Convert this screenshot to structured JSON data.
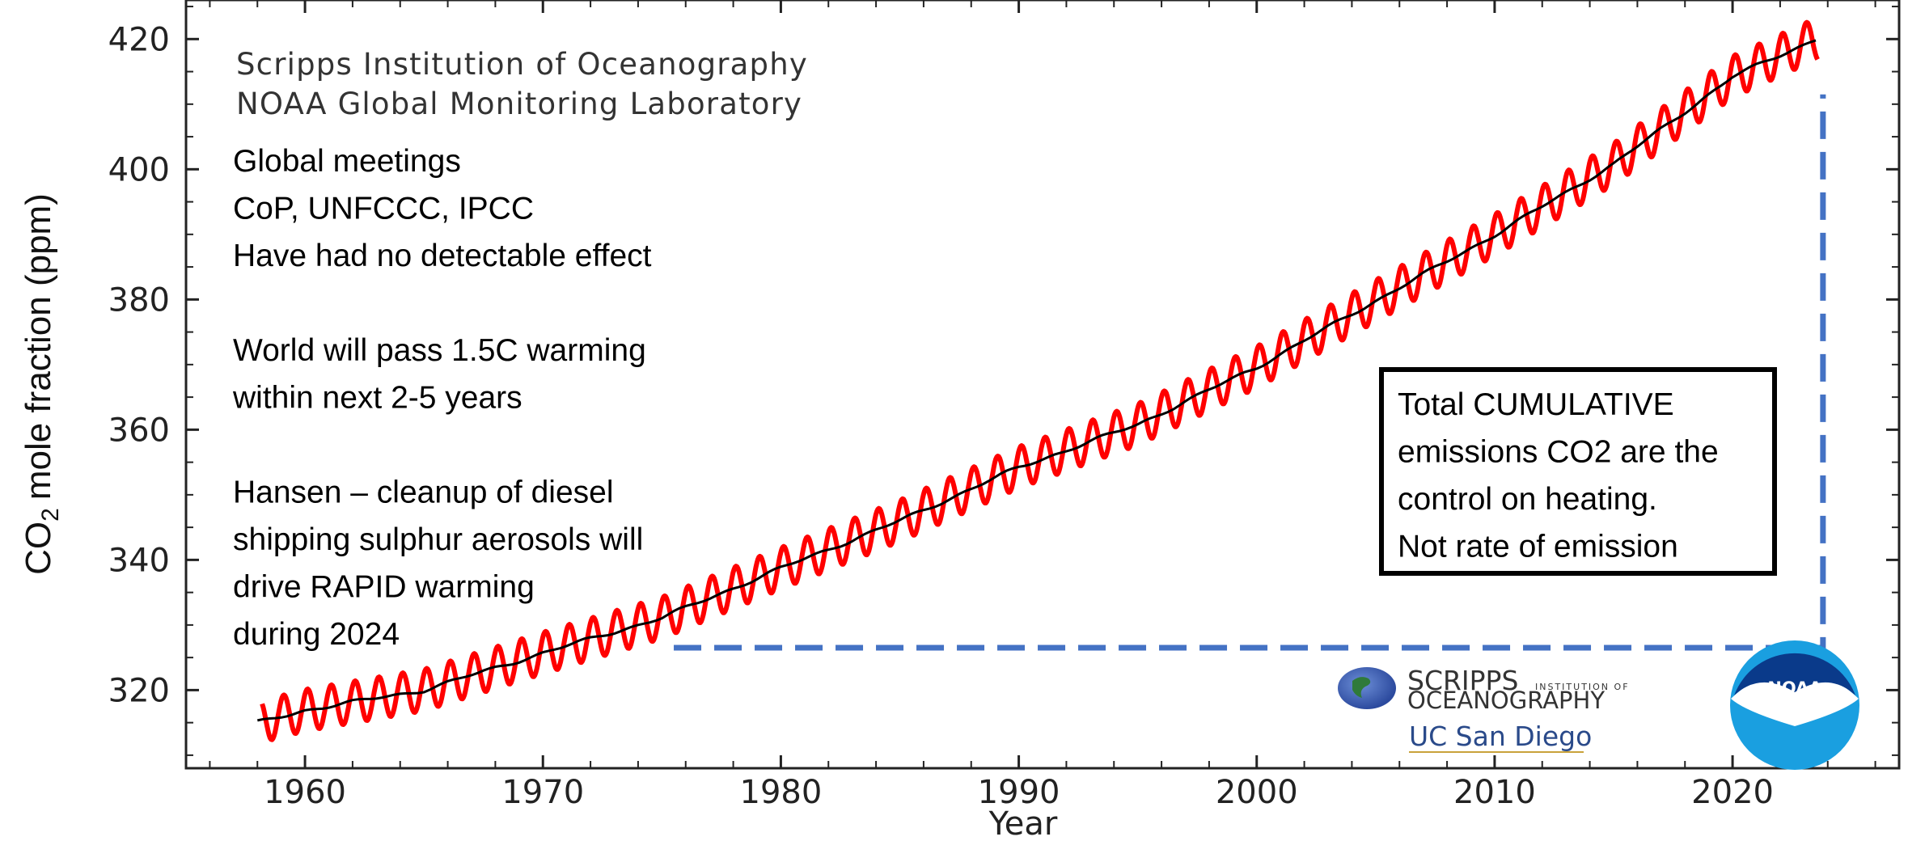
{
  "chart_data": {
    "type": "line",
    "ylabel": "mole fraction (ppm)",
    "ylabel_prefix": "CO",
    "ylabel_sub": "2",
    "xlabel": "Year",
    "xlim": [
      1955,
      2027
    ],
    "ylim": [
      308,
      426
    ],
    "xticks": [
      1960,
      1970,
      1980,
      1990,
      2000,
      2010,
      2020
    ],
    "yticks": [
      320,
      340,
      360,
      380,
      400,
      420
    ],
    "source_lines": [
      "Scripps Institution of Oceanography",
      "NOAA Global Monitoring Laboratory"
    ],
    "series": [
      {
        "role": "monthly",
        "color": "#ff0000",
        "seasonal_amplitude_ppm": 3.2,
        "start_year": 1958.2,
        "end_year": 2023.6
      },
      {
        "role": "trend",
        "color": "#000000",
        "x": [
          1958,
          1960,
          1965,
          1970,
          1975,
          1980,
          1985,
          1990,
          1995,
          2000,
          2005,
          2010,
          2015,
          2020,
          2023.5
        ],
        "y": [
          315,
          316.9,
          320,
          325.7,
          331.1,
          338.7,
          346,
          354.2,
          360.8,
          369.6,
          379.8,
          389.9,
          400.8,
          414.2,
          420
        ]
      }
    ],
    "bracket": {
      "x_start": 1975.5,
      "x_end": 2023.8,
      "y_bottom": 326.5,
      "y_top": 411.5,
      "color": "#4472c4"
    }
  },
  "annotations": {
    "left_text": [
      "Global meetings",
      "CoP, UNFCCC, IPCC",
      "Have had no detectable effect",
      "",
      "World will pass 1.5C warming",
      "within next 2-5 years",
      "",
      "Hansen – cleanup of diesel",
      "shipping sulphur aerosols will",
      "drive RAPID warming",
      "during 2024"
    ],
    "box_text": [
      "Total CUMULATIVE",
      "emissions CO2 are the",
      "control on heating.",
      "Not rate of emission"
    ]
  },
  "logos": {
    "scripps_line1": "SCRIPPS",
    "scripps_small": "INSTITUTION OF",
    "scripps_line2": "OCEANOGRAPHY",
    "ucsd": "UC San Diego",
    "noaa": "NOAA"
  }
}
